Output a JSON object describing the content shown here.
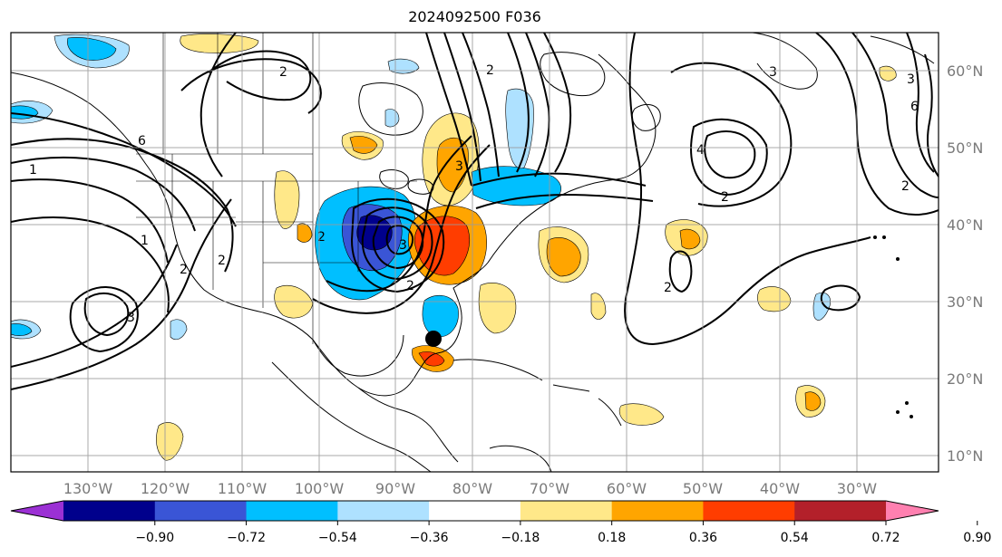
{
  "title": "2024092500 F036",
  "map": {
    "lat_labels": [
      "10°N",
      "20°N",
      "30°N",
      "40°N",
      "50°N",
      "60°N"
    ],
    "lon_labels": [
      "130°W",
      "120°W",
      "110°W",
      "100°W",
      "90°W",
      "80°W",
      "70°W",
      "60°W",
      "50°W",
      "40°W",
      "30°W"
    ],
    "contour_labels": [
      "2",
      "6",
      "2",
      "3",
      "1",
      "2",
      "2",
      "1",
      "3",
      "2",
      "4",
      "2",
      "2",
      "3",
      "2",
      "6",
      "3",
      "3",
      "2"
    ],
    "shading_colors": {
      "purple": "#9b30d4",
      "navy": "#00008c",
      "blue": "#3a55d6",
      "sky": "#00bfff",
      "lightblue": "#aee1ff",
      "white": "#ffffff",
      "yellow": "#ffe889",
      "orange": "#ffa500",
      "redorange": "#ff3d00",
      "darkred": "#b3202a",
      "pink": "#ff80b0"
    },
    "marker": "storm-center-dot"
  },
  "colorbar": {
    "ticks": [
      "−0.90",
      "−0.72",
      "−0.54",
      "−0.36",
      "−0.18",
      "0.18",
      "0.36",
      "0.54",
      "0.72",
      "0.90"
    ],
    "colors": [
      "#9b30d4",
      "#00008c",
      "#3a55d6",
      "#00bfff",
      "#aee1ff",
      "#ffffff",
      "#ffe889",
      "#ffa500",
      "#ff3d00",
      "#b3202a",
      "#ff80b0"
    ]
  }
}
